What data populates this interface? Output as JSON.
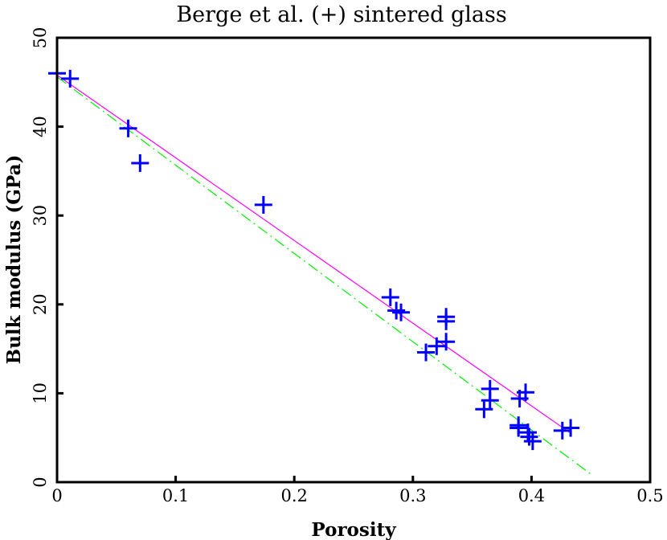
{
  "chart_data": {
    "type": "scatter",
    "title": "Berge et al. (+) sintered glass",
    "xlabel": "Porosity",
    "ylabel": "Bulk modulus (GPa)",
    "xlim": [
      0,
      0.5
    ],
    "ylim": [
      0,
      50
    ],
    "xticks": [
      "0",
      "0.1",
      "0.2",
      "0.3",
      "0.4",
      "0.5"
    ],
    "yticks": [
      "0",
      "10",
      "20",
      "30",
      "40",
      "50"
    ],
    "grid": false,
    "marker": "+",
    "colors": {
      "points": "#0000ff",
      "line1": "#ff00ff",
      "line2": "#00ee00"
    },
    "points": [
      [
        0.0,
        46.0
      ],
      [
        0.011,
        45.4
      ],
      [
        0.06,
        39.8
      ],
      [
        0.07,
        35.9
      ],
      [
        0.174,
        31.2
      ],
      [
        0.281,
        20.8
      ],
      [
        0.286,
        19.3
      ],
      [
        0.29,
        19.1
      ],
      [
        0.328,
        18.6
      ],
      [
        0.328,
        18.1
      ],
      [
        0.328,
        15.8
      ],
      [
        0.32,
        15.3
      ],
      [
        0.311,
        14.6
      ],
      [
        0.365,
        10.5
      ],
      [
        0.365,
        9.2
      ],
      [
        0.36,
        8.2
      ],
      [
        0.395,
        10.1
      ],
      [
        0.39,
        9.4
      ],
      [
        0.389,
        6.4
      ],
      [
        0.389,
        6.1
      ],
      [
        0.397,
        5.6
      ],
      [
        0.398,
        5.1
      ],
      [
        0.401,
        4.6
      ],
      [
        0.426,
        5.8
      ],
      [
        0.433,
        6.1
      ]
    ],
    "lines": [
      {
        "style": "solid",
        "color": "#ff00ff",
        "x": [
          0,
          0.432
        ],
        "y": [
          45.8,
          5.6
        ]
      },
      {
        "style": "dash-dot",
        "color": "#00ee00",
        "x": [
          0,
          0.451
        ],
        "y": [
          45.6,
          0.8
        ]
      }
    ]
  }
}
